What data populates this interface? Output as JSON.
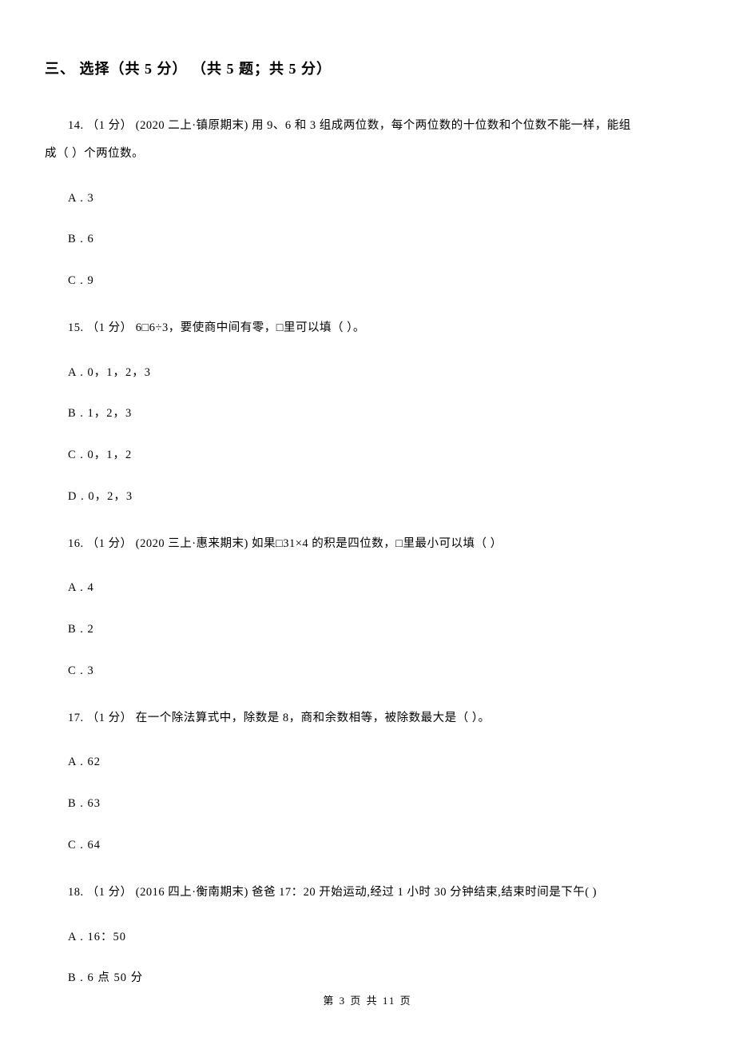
{
  "section": {
    "title": "三、 选择（共 5 分） （共 5 题；共 5 分）"
  },
  "questions": [
    {
      "number": "14",
      "text_line1": "14. （1 分） (2020 二上·镇原期末) 用 9、6 和 3 组成两位数，每个两位数的十位数和个位数不能一样，能组",
      "text_line2": "成（    ）个两位数。",
      "options": [
        "A . 3",
        "B . 6",
        "C . 9"
      ]
    },
    {
      "number": "15",
      "text": "15. （1 分） 6□6÷3，要使商中间有零，□里可以填（    ）。",
      "options": [
        "A . 0，1，2，3",
        "B . 1，2，3",
        "C . 0，1，2",
        "D . 0，2，3"
      ]
    },
    {
      "number": "16",
      "text": "16. （1 分） (2020 三上·惠来期末) 如果□31×4 的积是四位数，□里最小可以填（    ）",
      "options": [
        "A . 4",
        "B . 2",
        "C . 3"
      ]
    },
    {
      "number": "17",
      "text": "17. （1 分） 在一个除法算式中，除数是 8，商和余数相等，被除数最大是（    ）。",
      "options": [
        "A . 62",
        "B . 63",
        "C . 64"
      ]
    },
    {
      "number": "18",
      "text": "18. （1 分） (2016 四上·衡南期末) 爸爸 17：20 开始运动,经过 1 小时 30 分钟结束,结束时间是下午(     )",
      "options": [
        "A . 16：50",
        "B . 6 点 50 分"
      ]
    }
  ],
  "footer": "第 3 页 共 11 页"
}
